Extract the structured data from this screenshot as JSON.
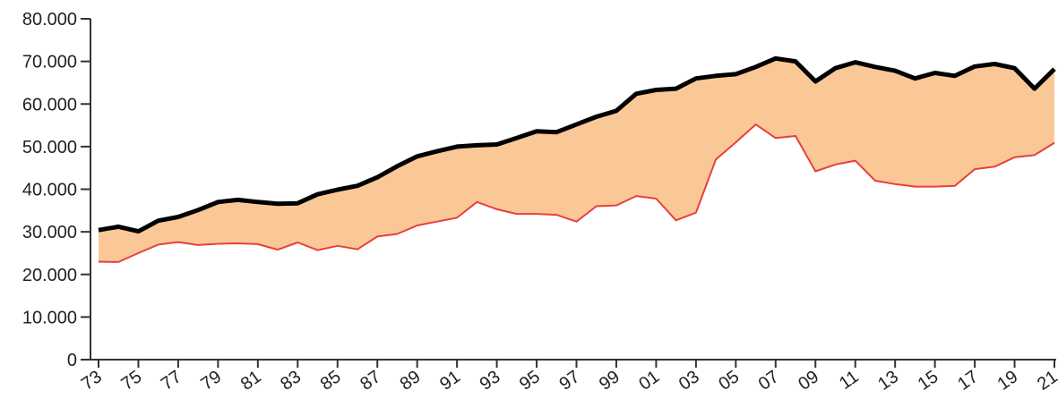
{
  "chart_data": {
    "type": "area",
    "colors": {
      "band_fill": "#fac896",
      "upper_line": "#000000",
      "lower_line": "#e8403c"
    },
    "grid": false,
    "legend": "none",
    "ylim": [
      0,
      80000
    ],
    "xlim": [
      1973,
      2021
    ],
    "y_ticks": [
      0,
      10000,
      20000,
      30000,
      40000,
      50000,
      60000,
      70000,
      80000
    ],
    "y_tick_labels": [
      "0",
      "10.000",
      "20.000",
      "30.000",
      "40.000",
      "50.000",
      "60.000",
      "70.000",
      "80.000"
    ],
    "x_tick_values": [
      1973,
      1975,
      1977,
      1979,
      1981,
      1983,
      1985,
      1987,
      1989,
      1991,
      1993,
      1995,
      1997,
      1999,
      2001,
      2003,
      2005,
      2007,
      2009,
      2011,
      2013,
      2015,
      2017,
      2019,
      2021
    ],
    "x_tick_labels": [
      "73",
      "75",
      "77",
      "79",
      "81",
      "83",
      "85",
      "87",
      "89",
      "91",
      "93",
      "95",
      "97",
      "99",
      "01",
      "03",
      "05",
      "07",
      "09",
      "11",
      "13",
      "15",
      "17",
      "19",
      "21"
    ],
    "x": [
      1973,
      1974,
      1975,
      1976,
      1977,
      1978,
      1979,
      1980,
      1981,
      1982,
      1983,
      1984,
      1985,
      1986,
      1987,
      1988,
      1989,
      1990,
      1991,
      1992,
      1993,
      1994,
      1995,
      1996,
      1997,
      1998,
      1999,
      2000,
      2001,
      2002,
      2003,
      2004,
      2005,
      2006,
      2007,
      2008,
      2009,
      2010,
      2011,
      2012,
      2013,
      2014,
      2015,
      2016,
      2017,
      2018,
      2019,
      2020,
      2021
    ],
    "series": [
      {
        "values": [
          30400,
          31200,
          30100,
          32600,
          33500,
          35100,
          37000,
          37500,
          37000,
          36600,
          36700,
          38800,
          39900,
          40800,
          42800,
          45400,
          47700,
          48900,
          50000,
          50300,
          50500,
          52000,
          53600,
          53400,
          55200,
          57000,
          58400,
          62400,
          63300,
          63600,
          66000,
          66600,
          67000,
          68700,
          70700,
          70000,
          65300,
          68400,
          69800,
          68700,
          67800,
          66000,
          67300,
          66600,
          68800,
          69400,
          68400,
          63600,
          68200
        ]
      },
      {
        "values": [
          23000,
          22900,
          25000,
          27000,
          27600,
          26900,
          27200,
          27300,
          27100,
          25800,
          27500,
          25700,
          26700,
          25900,
          28900,
          29500,
          31500,
          32400,
          33300,
          37000,
          35300,
          34200,
          34200,
          34000,
          32400,
          36000,
          36200,
          38400,
          37800,
          32700,
          34500,
          47000,
          51000,
          55200,
          52000,
          52500,
          44200,
          45800,
          46700,
          42000,
          41200,
          40600,
          40600,
          40800,
          44700,
          45300,
          47500,
          48000,
          50900
        ]
      }
    ]
  }
}
